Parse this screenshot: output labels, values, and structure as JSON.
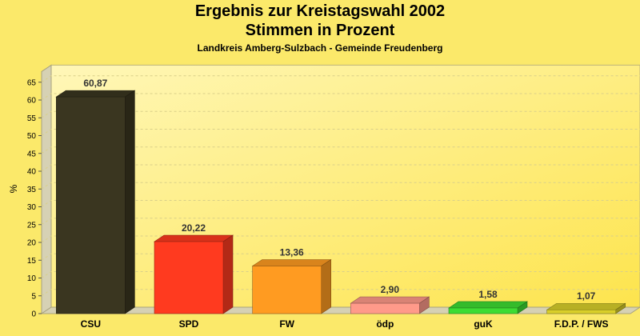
{
  "chart_data": {
    "type": "bar",
    "title": "Ergebnis zur Kreistagswahl 2002",
    "subtitle": "Stimmen in Prozent",
    "subsubtitle": "Landkreis Amberg-Sulzbach - Gemeinde Freudenberg",
    "ylabel": "%",
    "xlabel": "",
    "ylim": [
      0,
      68
    ],
    "yticks": [
      0,
      5,
      10,
      15,
      20,
      25,
      30,
      35,
      40,
      45,
      50,
      55,
      60,
      65
    ],
    "grid": true,
    "categories": [
      "CSU",
      "SPD",
      "FW",
      "ödp",
      "guK",
      "F.D.P. / FWS"
    ],
    "values": [
      60.87,
      20.22,
      13.36,
      2.9,
      1.58,
      1.07
    ],
    "value_labels": [
      "60,87",
      "20,22",
      "13,36",
      "2,90",
      "1,58",
      "1,07"
    ],
    "colors": [
      "#3a3620",
      "#ff3a1f",
      "#ff9b21",
      "#ff9a8a",
      "#3ddc33",
      "#d9cf2a"
    ]
  }
}
